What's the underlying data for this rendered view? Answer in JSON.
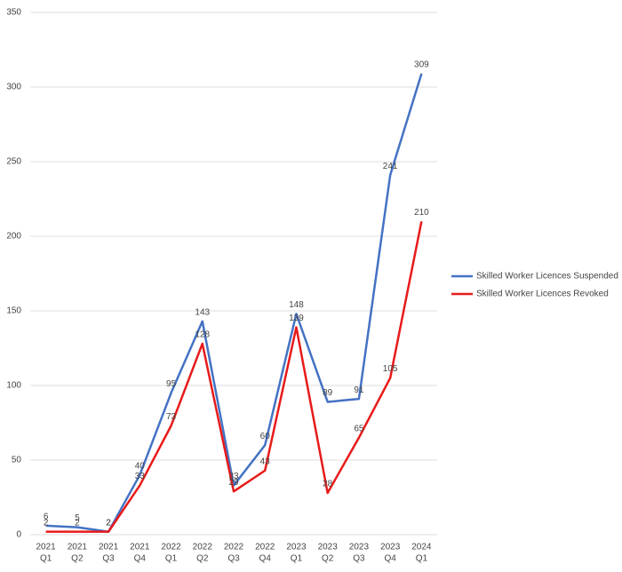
{
  "chart_data": {
    "type": "line",
    "categories": [
      [
        "2021",
        "Q1"
      ],
      [
        "2021",
        "Q2"
      ],
      [
        "2021",
        "Q3"
      ],
      [
        "2021",
        "Q4"
      ],
      [
        "2022",
        "Q1"
      ],
      [
        "2022",
        "Q2"
      ],
      [
        "2022",
        "Q3"
      ],
      [
        "2022",
        "Q4"
      ],
      [
        "2023",
        "Q1"
      ],
      [
        "2023",
        "Q2"
      ],
      [
        "2023",
        "Q3"
      ],
      [
        "2023",
        "Q4"
      ],
      [
        "2024",
        "Q1"
      ]
    ],
    "series": [
      {
        "name": "Skilled Worker Licences Suspended",
        "color": "#4472c4",
        "values": [
          6,
          5,
          2,
          40,
          95,
          143,
          33,
          60,
          148,
          89,
          91,
          241,
          309
        ]
      },
      {
        "name": "Skilled Worker Licences Revoked",
        "color": "#e81a1a",
        "values": [
          2,
          2,
          2,
          33,
          73,
          128,
          29,
          43,
          139,
          28,
          65,
          105,
          210
        ]
      }
    ],
    "ylim": [
      0,
      350
    ],
    "yticks": [
      0,
      50,
      100,
      150,
      200,
      250,
      300,
      350
    ],
    "grid": true,
    "legend": "right"
  }
}
